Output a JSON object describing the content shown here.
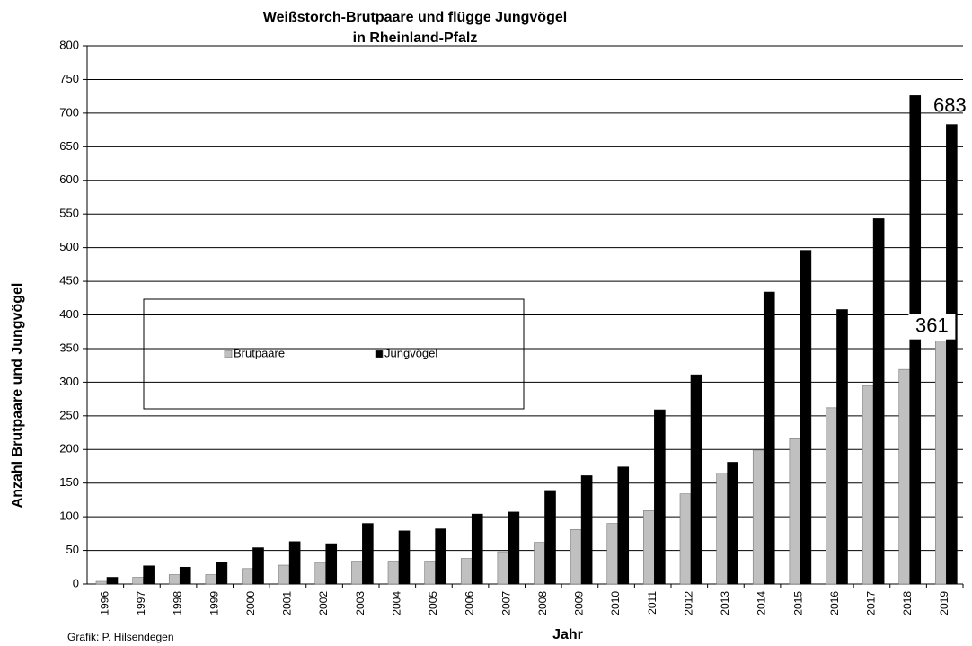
{
  "chart_data": {
    "type": "bar",
    "title": "Weißstorch-Brutpaare und flügge Jungvögel",
    "subtitle": "in Rheinland-Pfalz",
    "y_label": "Anzahl Brutpaare und Jungvögel",
    "x_label": "Jahr",
    "credit": "Grafik: P. Hilsendegen",
    "categories": [
      "1996",
      "1997",
      "1998",
      "1999",
      "2000",
      "2001",
      "2002",
      "2003",
      "2004",
      "2005",
      "2006",
      "2007",
      "2008",
      "2009",
      "2010",
      "2011",
      "2012",
      "2013",
      "2014",
      "2015",
      "2016",
      "2017",
      "2018",
      "2019"
    ],
    "series": [
      {
        "name": "Brutpaare",
        "color": "#c0c0c0",
        "values": [
          4,
          10,
          14,
          14,
          23,
          28,
          32,
          34,
          34,
          34,
          38,
          48,
          62,
          81,
          90,
          109,
          134,
          165,
          199,
          216,
          262,
          295,
          319,
          361
        ]
      },
      {
        "name": "Jungvögel",
        "color": "#000000",
        "values": [
          10,
          27,
          25,
          32,
          54,
          63,
          60,
          90,
          79,
          82,
          104,
          107,
          139,
          161,
          174,
          259,
          311,
          181,
          434,
          496,
          408,
          543,
          726,
          683
        ]
      }
    ],
    "ylim": [
      0,
      800
    ],
    "yticks": [
      0,
      50,
      100,
      150,
      200,
      250,
      300,
      350,
      400,
      450,
      500,
      550,
      600,
      650,
      700,
      750,
      800
    ],
    "grid": true
  }
}
